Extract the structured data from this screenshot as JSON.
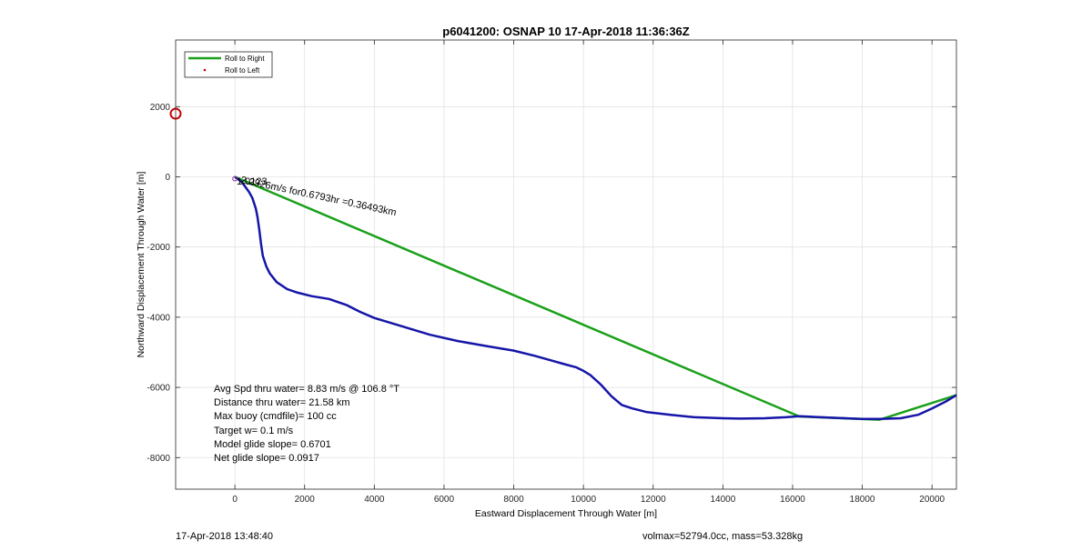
{
  "footer": {
    "timestamp": "17-Apr-2018 13:48:40",
    "volmax_mass": "volmax=52794.0cc, mass=53.328kg"
  },
  "chart_data": {
    "type": "line",
    "title": "p6041200: OSNAP 10 17-Apr-2018 11:36:36Z",
    "xlabel": "Eastward Displacement Through Water [m]",
    "ylabel": "Northward Displacement Through Water [m]",
    "xlim": [
      -1700,
      20700
    ],
    "ylim": [
      -8900,
      3900
    ],
    "xticks": [
      0,
      2000,
      4000,
      6000,
      8000,
      10000,
      12000,
      14000,
      16000,
      18000,
      20000
    ],
    "yticks": [
      -8000,
      -6000,
      -4000,
      -2000,
      0,
      2000
    ],
    "grid": true,
    "legend_position": "top-left",
    "legend": [
      "Roll to Right",
      "Roll to Left"
    ],
    "colors": {
      "roll_right": "#1aa01a",
      "roll_left": "#cc0000",
      "track": "#1515a8",
      "start_marker": "#cc0000"
    },
    "series": [
      {
        "name": "Roll to Right",
        "x": [
          0,
          16200,
          18500,
          20700
        ],
        "y": [
          0,
          -6830,
          -6920,
          -6220
        ]
      },
      {
        "x": [
          0,
          200,
          400,
          500,
          600,
          650,
          700,
          750,
          800,
          900,
          1000,
          1200,
          1500,
          1800,
          2200,
          2700,
          3200,
          3600,
          4000,
          4800,
          5600,
          6400,
          7200,
          8000,
          8600,
          9100,
          9500,
          9800,
          10000,
          10200,
          10500,
          10800,
          11100,
          11400,
          11800,
          12500,
          13200,
          14000,
          14500,
          15200,
          15800,
          16200,
          16800,
          17500,
          18000,
          18500,
          19100,
          19600,
          20000,
          20400,
          20700
        ],
        "y": [
          0,
          -150,
          -420,
          -600,
          -900,
          -1150,
          -1500,
          -1900,
          -2250,
          -2550,
          -2750,
          -3000,
          -3200,
          -3300,
          -3400,
          -3480,
          -3650,
          -3850,
          -4020,
          -4260,
          -4500,
          -4680,
          -4820,
          -4950,
          -5100,
          -5240,
          -5350,
          -5430,
          -5530,
          -5650,
          -5920,
          -6250,
          -6500,
          -6600,
          -6700,
          -6780,
          -6850,
          -6880,
          -6890,
          -6880,
          -6850,
          -6820,
          -6850,
          -6880,
          -6900,
          -6900,
          -6880,
          -6780,
          -6600,
          -6400,
          -6220
        ]
      }
    ],
    "start_marker": {
      "x": -1700,
      "y": 1800
    },
    "annotations": {
      "track_label": "2.2926m/s for0.6793hr =0.36493km",
      "overlap_label": "1.0123",
      "stats": [
        "Avg Spd thru water=  8.83 m/s @ 106.8 °T",
        "Distance thru water= 21.58 km",
        "Max buoy (cmdfile)= 100 cc",
        "Target w= 0.1 m/s",
        "Model glide slope= 0.6701",
        "Net glide slope= 0.0917"
      ]
    }
  }
}
